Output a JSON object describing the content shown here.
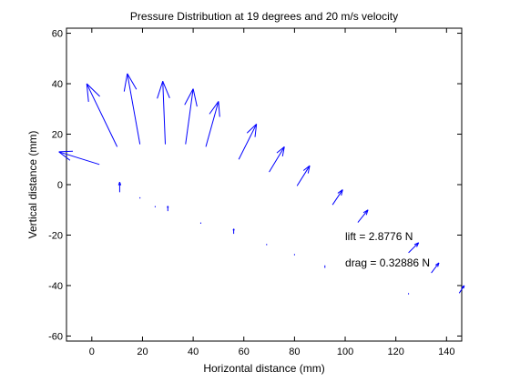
{
  "chart_data": {
    "type": "quiver",
    "title": "Pressure Distribution at 19 degrees and 20 m/s velocity",
    "xlabel": "Horizontal distance (mm)",
    "ylabel": "Vertical distance (mm)",
    "xlim": [
      -10,
      146
    ],
    "ylim": [
      -62,
      62
    ],
    "xticks": [
      0,
      20,
      40,
      60,
      80,
      100,
      120,
      140
    ],
    "yticks": [
      -60,
      -40,
      -20,
      0,
      20,
      40,
      60
    ],
    "grid": false,
    "arrow_color": "#0000ff",
    "vectors": [
      {
        "x": 3,
        "y": 8,
        "u": -16,
        "v": 5
      },
      {
        "x": 10,
        "y": 15,
        "u": -12,
        "v": 25
      },
      {
        "x": 19,
        "y": 16,
        "u": -5,
        "v": 28
      },
      {
        "x": 29,
        "y": 16,
        "u": -1,
        "v": 25
      },
      {
        "x": 37,
        "y": 16,
        "u": 3,
        "v": 22
      },
      {
        "x": 45,
        "y": 15,
        "u": 5,
        "v": 18
      },
      {
        "x": 58,
        "y": 10,
        "u": 7,
        "v": 14
      },
      {
        "x": 70,
        "y": 5,
        "u": 6,
        "v": 10
      },
      {
        "x": 81,
        "y": -0.5,
        "u": 5,
        "v": 8
      },
      {
        "x": 95,
        "y": -8,
        "u": 4,
        "v": 6
      },
      {
        "x": 105,
        "y": -15,
        "u": 4,
        "v": 5
      },
      {
        "x": 125,
        "y": -27,
        "u": 4,
        "v": 4
      },
      {
        "x": 134,
        "y": -35,
        "u": 3,
        "v": 4
      },
      {
        "x": 145,
        "y": -43,
        "u": 2,
        "v": 3
      },
      {
        "x": 11,
        "y": -3,
        "u": 0,
        "v": 4
      },
      {
        "x": 30,
        "y": -10.5,
        "u": 0,
        "v": 2
      },
      {
        "x": 56,
        "y": -19.5,
        "u": 0,
        "v": 2
      },
      {
        "x": 92,
        "y": -33,
        "u": 0,
        "v": 1
      },
      {
        "x": 19,
        "y": -5.5,
        "u": 0,
        "v": 0.5
      },
      {
        "x": 25,
        "y": -9,
        "u": 0,
        "v": 0.5
      },
      {
        "x": 43,
        "y": -15.5,
        "u": 0,
        "v": 0.5
      },
      {
        "x": 69,
        "y": -24,
        "u": 0,
        "v": 0.5
      },
      {
        "x": 80,
        "y": -28,
        "u": 0,
        "v": 0.5
      },
      {
        "x": 125,
        "y": -43.5,
        "u": 0,
        "v": 0.5
      }
    ],
    "annotations": [
      {
        "text": "lift = 2.8776 N",
        "x": 100,
        "y": -20.5
      },
      {
        "text": "drag = 0.32886 N",
        "x": 100,
        "y": -31
      }
    ]
  }
}
